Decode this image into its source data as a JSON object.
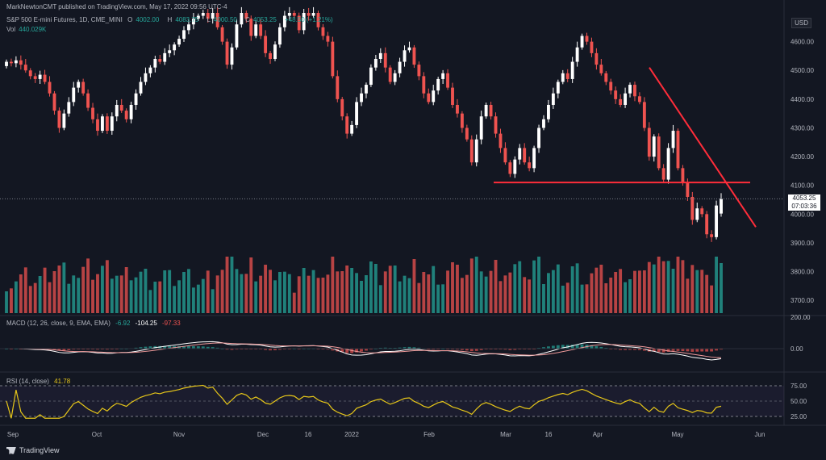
{
  "publisher_line": "MarkNewtonCMT published on TradingView.com, May 17, 2022 09:56 UTC-4",
  "symbol": {
    "name": "S&P 500 E-mini Futures, 1D, CME_MINI",
    "open_label": "O",
    "open": "4002.00",
    "high_label": "H",
    "high": "4083.75",
    "low_label": "L",
    "low": "4000.50",
    "close_label": "C",
    "close": "4053.25",
    "change": "+48.50 (+1.21%)"
  },
  "volume": {
    "label": "Vol",
    "value": "440.029K"
  },
  "macd": {
    "label": "MACD (12, 26, close, 9, EMA, EMA)",
    "v1": "-6.92",
    "v2": "-104.25",
    "v3": "-97.33"
  },
  "rsi": {
    "label": "RSI (14, close)",
    "value": "41.78"
  },
  "currency": "USD",
  "last_price": {
    "price": "4053.25",
    "countdown": "07:03:36"
  },
  "footer_brand": "TradingView",
  "colors": {
    "up": "#ffffff",
    "down": "#ef5350",
    "vol_up": "#26a69a",
    "vol_down": "#ef5350",
    "rsi": "#e6c619",
    "macd_line": "#ffffff",
    "signal": "#ef9a9a",
    "annotation": "#ff2d3a"
  },
  "chart_data": {
    "type": "candlestick",
    "price_axis": {
      "min": 3650,
      "max": 4700,
      "ticks": [
        "4600.00",
        "4500.00",
        "4400.00",
        "4300.00",
        "4200.00",
        "4100.00",
        "4000.00",
        "3900.00",
        "3800.00",
        "3700.00"
      ]
    },
    "macd_axis": {
      "ticks": [
        "200.00",
        "0.00"
      ]
    },
    "rsi_axis": {
      "ticks": [
        "75.00",
        "50.00",
        "25.00"
      ]
    },
    "x_labels": [
      "Sep",
      "Oct",
      "Nov",
      "Dec",
      "16",
      "2022",
      "Feb",
      "Mar",
      "16",
      "Apr",
      "May",
      "Jun"
    ],
    "key_levels": {
      "horizontal_support": 4110,
      "downtrend_start": 4510,
      "downtrend_end": 3955
    },
    "candles": [
      {
        "o": 4515,
        "c": 4530
      },
      {
        "o": 4530,
        "c": 4525
      },
      {
        "o": 4525,
        "c": 4535
      },
      {
        "o": 4535,
        "c": 4520
      },
      {
        "o": 4520,
        "c": 4500
      },
      {
        "o": 4500,
        "c": 4480
      },
      {
        "o": 4480,
        "c": 4470
      },
      {
        "o": 4470,
        "c": 4485
      },
      {
        "o": 4485,
        "c": 4460
      },
      {
        "o": 4460,
        "c": 4420
      },
      {
        "o": 4420,
        "c": 4360
      },
      {
        "o": 4360,
        "c": 4300
      },
      {
        "o": 4300,
        "c": 4350
      },
      {
        "o": 4350,
        "c": 4390
      },
      {
        "o": 4390,
        "c": 4440
      },
      {
        "o": 4440,
        "c": 4460
      },
      {
        "o": 4460,
        "c": 4420
      },
      {
        "o": 4420,
        "c": 4370
      },
      {
        "o": 4370,
        "c": 4330
      },
      {
        "o": 4330,
        "c": 4290
      },
      {
        "o": 4290,
        "c": 4340
      },
      {
        "o": 4340,
        "c": 4290
      },
      {
        "o": 4290,
        "c": 4340
      },
      {
        "o": 4340,
        "c": 4380
      },
      {
        "o": 4380,
        "c": 4360
      },
      {
        "o": 4360,
        "c": 4330
      },
      {
        "o": 4330,
        "c": 4380
      },
      {
        "o": 4380,
        "c": 4420
      },
      {
        "o": 4420,
        "c": 4460
      },
      {
        "o": 4460,
        "c": 4490
      },
      {
        "o": 4490,
        "c": 4510
      },
      {
        "o": 4510,
        "c": 4540
      },
      {
        "o": 4540,
        "c": 4530
      },
      {
        "o": 4530,
        "c": 4560
      },
      {
        "o": 4560,
        "c": 4570
      },
      {
        "o": 4570,
        "c": 4590
      },
      {
        "o": 4590,
        "c": 4610
      },
      {
        "o": 4610,
        "c": 4640
      },
      {
        "o": 4640,
        "c": 4660
      },
      {
        "o": 4660,
        "c": 4680
      },
      {
        "o": 4680,
        "c": 4690
      },
      {
        "o": 4690,
        "c": 4700
      },
      {
        "o": 4700,
        "c": 4680
      },
      {
        "o": 4680,
        "c": 4700
      },
      {
        "o": 4700,
        "c": 4650
      },
      {
        "o": 4650,
        "c": 4600
      },
      {
        "o": 4600,
        "c": 4520
      },
      {
        "o": 4520,
        "c": 4580
      },
      {
        "o": 4580,
        "c": 4660
      },
      {
        "o": 4660,
        "c": 4700
      },
      {
        "o": 4700,
        "c": 4680
      },
      {
        "o": 4680,
        "c": 4620
      },
      {
        "o": 4620,
        "c": 4660
      },
      {
        "o": 4660,
        "c": 4620
      },
      {
        "o": 4620,
        "c": 4560
      },
      {
        "o": 4560,
        "c": 4540
      },
      {
        "o": 4540,
        "c": 4590
      },
      {
        "o": 4590,
        "c": 4650
      },
      {
        "o": 4650,
        "c": 4690
      },
      {
        "o": 4690,
        "c": 4700
      },
      {
        "o": 4700,
        "c": 4690
      },
      {
        "o": 4690,
        "c": 4640
      },
      {
        "o": 4640,
        "c": 4700
      },
      {
        "o": 4700,
        "c": 4690
      },
      {
        "o": 4690,
        "c": 4700
      },
      {
        "o": 4700,
        "c": 4650
      },
      {
        "o": 4650,
        "c": 4620
      },
      {
        "o": 4620,
        "c": 4600
      },
      {
        "o": 4600,
        "c": 4480
      },
      {
        "o": 4480,
        "c": 4400
      },
      {
        "o": 4400,
        "c": 4340
      },
      {
        "o": 4340,
        "c": 4280
      },
      {
        "o": 4280,
        "c": 4310
      },
      {
        "o": 4310,
        "c": 4390
      },
      {
        "o": 4390,
        "c": 4420
      },
      {
        "o": 4420,
        "c": 4450
      },
      {
        "o": 4450,
        "c": 4510
      },
      {
        "o": 4510,
        "c": 4540
      },
      {
        "o": 4540,
        "c": 4560
      },
      {
        "o": 4560,
        "c": 4510
      },
      {
        "o": 4510,
        "c": 4460
      },
      {
        "o": 4460,
        "c": 4490
      },
      {
        "o": 4490,
        "c": 4530
      },
      {
        "o": 4530,
        "c": 4570
      },
      {
        "o": 4570,
        "c": 4580
      },
      {
        "o": 4580,
        "c": 4520
      },
      {
        "o": 4520,
        "c": 4480
      },
      {
        "o": 4480,
        "c": 4420
      },
      {
        "o": 4420,
        "c": 4390
      },
      {
        "o": 4390,
        "c": 4430
      },
      {
        "o": 4430,
        "c": 4470
      },
      {
        "o": 4470,
        "c": 4490
      },
      {
        "o": 4490,
        "c": 4440
      },
      {
        "o": 4440,
        "c": 4380
      },
      {
        "o": 4380,
        "c": 4350
      },
      {
        "o": 4350,
        "c": 4300
      },
      {
        "o": 4300,
        "c": 4260
      },
      {
        "o": 4260,
        "c": 4180
      },
      {
        "o": 4180,
        "c": 4260
      },
      {
        "o": 4260,
        "c": 4340
      },
      {
        "o": 4340,
        "c": 4380
      },
      {
        "o": 4380,
        "c": 4340
      },
      {
        "o": 4340,
        "c": 4280
      },
      {
        "o": 4280,
        "c": 4230
      },
      {
        "o": 4230,
        "c": 4180
      },
      {
        "o": 4180,
        "c": 4140
      },
      {
        "o": 4140,
        "c": 4190
      },
      {
        "o": 4190,
        "c": 4230
      },
      {
        "o": 4230,
        "c": 4180
      },
      {
        "o": 4180,
        "c": 4160
      },
      {
        "o": 4160,
        "c": 4230
      },
      {
        "o": 4230,
        "c": 4300
      },
      {
        "o": 4300,
        "c": 4330
      },
      {
        "o": 4330,
        "c": 4380
      },
      {
        "o": 4380,
        "c": 4420
      },
      {
        "o": 4420,
        "c": 4460
      },
      {
        "o": 4460,
        "c": 4490
      },
      {
        "o": 4490,
        "c": 4470
      },
      {
        "o": 4470,
        "c": 4530
      },
      {
        "o": 4530,
        "c": 4580
      },
      {
        "o": 4580,
        "c": 4620
      },
      {
        "o": 4620,
        "c": 4600
      },
      {
        "o": 4600,
        "c": 4560
      },
      {
        "o": 4560,
        "c": 4520
      },
      {
        "o": 4520,
        "c": 4490
      },
      {
        "o": 4490,
        "c": 4460
      },
      {
        "o": 4460,
        "c": 4430
      },
      {
        "o": 4430,
        "c": 4400
      },
      {
        "o": 4400,
        "c": 4380
      },
      {
        "o": 4380,
        "c": 4420
      },
      {
        "o": 4420,
        "c": 4450
      },
      {
        "o": 4450,
        "c": 4410
      },
      {
        "o": 4410,
        "c": 4390
      },
      {
        "o": 4390,
        "c": 4300
      },
      {
        "o": 4300,
        "c": 4200
      },
      {
        "o": 4200,
        "c": 4270
      },
      {
        "o": 4270,
        "c": 4160
      },
      {
        "o": 4160,
        "c": 4120
      },
      {
        "o": 4120,
        "c": 4230
      },
      {
        "o": 4230,
        "c": 4290
      },
      {
        "o": 4290,
        "c": 4160
      },
      {
        "o": 4160,
        "c": 4110
      },
      {
        "o": 4110,
        "c": 4060
      },
      {
        "o": 4060,
        "c": 3980
      },
      {
        "o": 3980,
        "c": 4020
      },
      {
        "o": 4020,
        "c": 4000
      },
      {
        "o": 4000,
        "c": 3930
      },
      {
        "o": 3930,
        "c": 3920
      },
      {
        "o": 3920,
        "c": 4030
      },
      {
        "o": 4002,
        "c": 4053
      }
    ]
  }
}
